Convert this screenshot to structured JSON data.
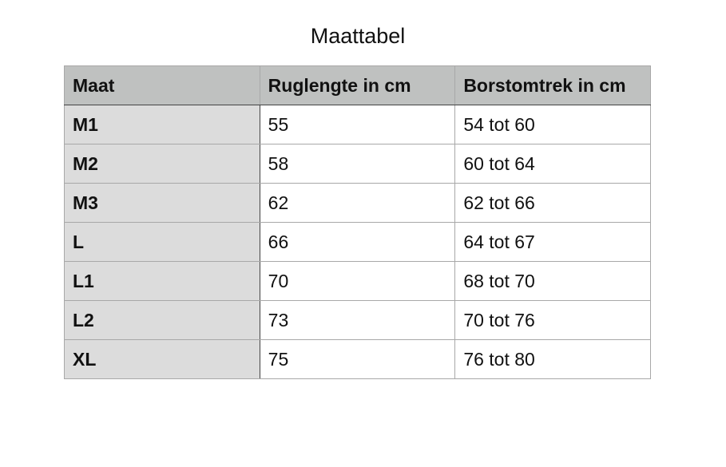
{
  "title": "Maattabel",
  "table": {
    "headers": [
      "Maat",
      "Ruglengte in cm",
      "Borstomtrek in cm"
    ],
    "rows": [
      [
        "M1",
        "55",
        "54 tot 60"
      ],
      [
        "M2",
        "58",
        "60 tot 64"
      ],
      [
        "M3",
        "62",
        "62 tot 66"
      ],
      [
        "L",
        "66",
        "64 tot 67"
      ],
      [
        "L1",
        "70",
        "68 tot 70"
      ],
      [
        "L2",
        "73",
        "70 tot 76"
      ],
      [
        "XL",
        "75",
        "76 tot 80"
      ]
    ]
  },
  "colors": {
    "header_bg": "#bfc1c0",
    "first_column_bg": "#dcdcdc"
  }
}
